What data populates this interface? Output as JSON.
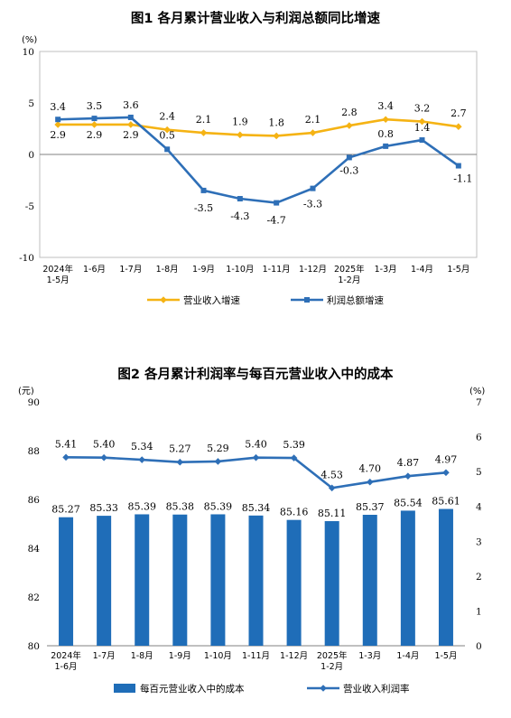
{
  "colors": {
    "orange": "#F5B314",
    "blue": "#2E6FB7",
    "bar": "#1F6DB8",
    "axis": "#808080"
  },
  "chart_data": [
    {
      "type": "line",
      "title": "图1  各月累计营业收入与利润总额同比增速",
      "ylabel": "(%)",
      "ylim": [
        -10,
        10
      ],
      "yticks": [
        "10",
        "5",
        "0",
        "-5",
        "-10"
      ],
      "categories": [
        "2024年|1-5月",
        "1-6月",
        "1-7月",
        "1-8月",
        "1-9月",
        "1-10月",
        "1-11月",
        "1-12月",
        "2025年|1-2月",
        "1-3月",
        "1-4月",
        "1-5月"
      ],
      "series": [
        {
          "name": "营业收入增速",
          "color": "#F5B314",
          "values": [
            2.9,
            2.9,
            2.9,
            2.4,
            2.1,
            1.9,
            1.8,
            2.1,
            2.8,
            3.4,
            3.2,
            2.7
          ],
          "labels": [
            "2.9",
            "2.9",
            "2.9",
            "2.4",
            "2.1",
            "1.9",
            "1.8",
            "2.1",
            "2.8",
            "3.4",
            "3.2",
            "2.7"
          ]
        },
        {
          "name": "利润总额增速",
          "color": "#2E6FB7",
          "values": [
            3.4,
            3.5,
            3.6,
            0.5,
            -3.5,
            -4.3,
            -4.7,
            -3.3,
            -0.3,
            0.8,
            1.4,
            -1.1
          ],
          "labels": [
            "3.4",
            "3.5",
            "3.6",
            "0.5",
            "-3.5",
            "-4.3",
            "-4.7",
            "-3.3",
            "-0.3",
            "0.8",
            "1.4",
            "-1.1"
          ]
        }
      ],
      "legend": "bottom"
    },
    {
      "type": "bar",
      "title": "图2  各月累计利润率与每百元营业收入中的成本",
      "ylabel_left": "(元)",
      "ylabel_right": "(%)",
      "ylim_left": [
        80,
        90
      ],
      "ylim_right": [
        0,
        7
      ],
      "yticks_left": [
        "90",
        "88",
        "86",
        "84",
        "82",
        "80"
      ],
      "yticks_right": [
        "7",
        "6",
        "5",
        "4",
        "3",
        "2",
        "1",
        "0"
      ],
      "categories": [
        "2024年|1-6月",
        "1-7月",
        "1-8月",
        "1-9月",
        "1-10月",
        "1-11月",
        "1-12月",
        "2025年|1-2月",
        "1-3月",
        "1-4月",
        "1-5月"
      ],
      "series": [
        {
          "name": "每百元营业收入中的成本",
          "type": "bar",
          "axis": "left",
          "color": "#1F6DB8",
          "values": [
            85.27,
            85.33,
            85.39,
            85.38,
            85.39,
            85.34,
            85.16,
            85.11,
            85.37,
            85.54,
            85.61
          ],
          "labels": [
            "85.27",
            "85.33",
            "85.39",
            "85.38",
            "85.39",
            "85.34",
            "85.16",
            "85.11",
            "85.37",
            "85.54",
            "85.61"
          ]
        },
        {
          "name": "营业收入利润率",
          "type": "line",
          "axis": "right",
          "color": "#2E6FB7",
          "values": [
            5.41,
            5.4,
            5.34,
            5.27,
            5.29,
            5.4,
            5.39,
            4.53,
            4.7,
            4.87,
            4.97
          ],
          "labels": [
            "5.41",
            "5.40",
            "5.34",
            "5.27",
            "5.29",
            "5.40",
            "5.39",
            "4.53",
            "4.70",
            "4.87",
            "4.97"
          ]
        }
      ],
      "legend": "bottom"
    }
  ]
}
